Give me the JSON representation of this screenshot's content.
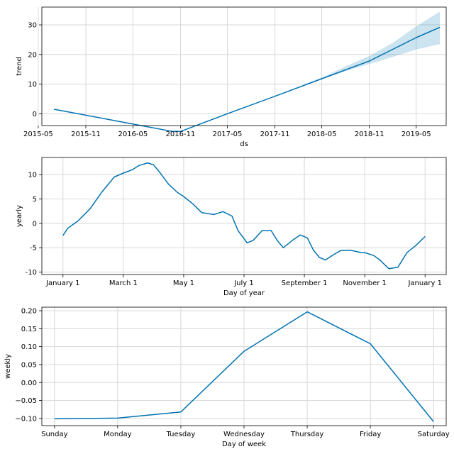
{
  "colors": {
    "line": "#0072B2",
    "band": "#0072B2",
    "grid": "#d8d8d8"
  },
  "chart_data": [
    {
      "type": "line",
      "xlabel": "ds",
      "ylabel": "trend",
      "x_kind": "date",
      "xlim": [
        "2015-05-15",
        "2019-08-25"
      ],
      "ylim": [
        -4,
        36
      ],
      "grid": true,
      "xticks": [
        {
          "value": "2015-05-01",
          "label": "2015-05"
        },
        {
          "value": "2015-11-01",
          "label": "2015-11"
        },
        {
          "value": "2016-05-01",
          "label": "2016-05"
        },
        {
          "value": "2016-11-01",
          "label": "2016-11"
        },
        {
          "value": "2017-05-01",
          "label": "2017-05"
        },
        {
          "value": "2017-11-01",
          "label": "2017-11"
        },
        {
          "value": "2018-05-01",
          "label": "2018-05"
        },
        {
          "value": "2018-11-01",
          "label": "2018-11"
        },
        {
          "value": "2019-05-01",
          "label": "2019-05"
        }
      ],
      "yticks": [
        0,
        10,
        20,
        30
      ],
      "series": [
        {
          "x": [
            "2015-07-01",
            "2015-11-01",
            "2016-05-01",
            "2016-10-01",
            "2016-11-01",
            "2017-05-01",
            "2017-11-01",
            "2018-05-01",
            "2018-11-01",
            "2019-05-01",
            "2019-08-01"
          ],
          "values": [
            1.5,
            -0.5,
            -3.5,
            -6.0,
            -6.0,
            0.0,
            5.9,
            11.8,
            17.8,
            25.7,
            29.2
          ]
        }
      ],
      "band": {
        "x": [
          "2018-03-01",
          "2018-05-01",
          "2018-08-01",
          "2018-11-01",
          "2019-02-01",
          "2019-05-01",
          "2019-08-01"
        ],
        "upper": [
          10.2,
          12.2,
          16.0,
          19.5,
          24.0,
          29.5,
          34.5
        ],
        "lower": [
          10.0,
          11.6,
          14.4,
          16.8,
          19.2,
          21.7,
          23.5
        ]
      }
    },
    {
      "type": "line",
      "xlabel": "Day of year",
      "ylabel": "yearly",
      "x_kind": "category-position",
      "xlim": [
        -0.35,
        6.35
      ],
      "ylim": [
        -10.5,
        13.5
      ],
      "grid": true,
      "xticks": [
        {
          "value": 0,
          "label": "January 1"
        },
        {
          "value": 1,
          "label": "March 1"
        },
        {
          "value": 2,
          "label": "May 1"
        },
        {
          "value": 3,
          "label": "July 1"
        },
        {
          "value": 4,
          "label": "September 1"
        },
        {
          "value": 5,
          "label": "November 1"
        },
        {
          "value": 6,
          "label": "January 1"
        }
      ],
      "yticks": [
        -10,
        -5,
        0,
        5,
        10
      ],
      "series": [
        {
          "x": [
            0.0,
            0.08,
            0.25,
            0.45,
            0.65,
            0.85,
            1.0,
            1.15,
            1.25,
            1.4,
            1.5,
            1.6,
            1.75,
            1.9,
            2.0,
            2.15,
            2.3,
            2.5,
            2.65,
            2.8,
            2.9,
            3.05,
            3.15,
            3.3,
            3.45,
            3.55,
            3.65,
            3.8,
            3.93,
            4.05,
            4.15,
            4.25,
            4.35,
            4.5,
            4.6,
            4.75,
            4.95,
            5.0,
            5.15,
            5.25,
            5.4,
            5.55,
            5.7,
            5.85,
            6.0
          ],
          "values": [
            -2.5,
            -1.0,
            0.5,
            3.0,
            6.5,
            9.5,
            10.3,
            11.0,
            11.8,
            12.4,
            12.0,
            10.5,
            8.0,
            6.3,
            5.5,
            4.0,
            2.2,
            1.8,
            2.4,
            1.5,
            -1.5,
            -4.0,
            -3.5,
            -1.5,
            -1.5,
            -3.5,
            -5.0,
            -3.5,
            -2.4,
            -3.0,
            -5.5,
            -7.0,
            -7.5,
            -6.3,
            -5.6,
            -5.5,
            -6.0,
            -6.0,
            -6.6,
            -7.5,
            -9.3,
            -9.0,
            -6.0,
            -4.5,
            -2.7
          ]
        }
      ]
    },
    {
      "type": "line",
      "xlabel": "Day of week",
      "ylabel": "weekly",
      "x_kind": "category-position",
      "xlim": [
        -0.2,
        6.2
      ],
      "ylim": [
        -0.12,
        0.21
      ],
      "grid": true,
      "categories": [
        "Sunday",
        "Monday",
        "Tuesday",
        "Wednesday",
        "Thursday",
        "Friday",
        "Saturday"
      ],
      "xticks": [
        {
          "value": 0,
          "label": "Sunday"
        },
        {
          "value": 1,
          "label": "Monday"
        },
        {
          "value": 2,
          "label": "Tuesday"
        },
        {
          "value": 3,
          "label": "Wednesday"
        },
        {
          "value": 4,
          "label": "Thursday"
        },
        {
          "value": 5,
          "label": "Friday"
        },
        {
          "value": 6,
          "label": "Saturday"
        }
      ],
      "yticks": [
        -0.1,
        -0.05,
        0.0,
        0.05,
        0.1,
        0.15,
        0.2
      ],
      "ytick_labels": [
        "−0.10",
        "−0.05",
        "0.00",
        "0.05",
        "0.10",
        "0.15",
        "0.20"
      ],
      "series": [
        {
          "x": [
            0,
            1,
            2,
            3,
            4,
            5,
            6
          ],
          "values": [
            -0.101,
            -0.099,
            -0.082,
            0.087,
            0.197,
            0.108,
            -0.109
          ]
        }
      ]
    }
  ]
}
